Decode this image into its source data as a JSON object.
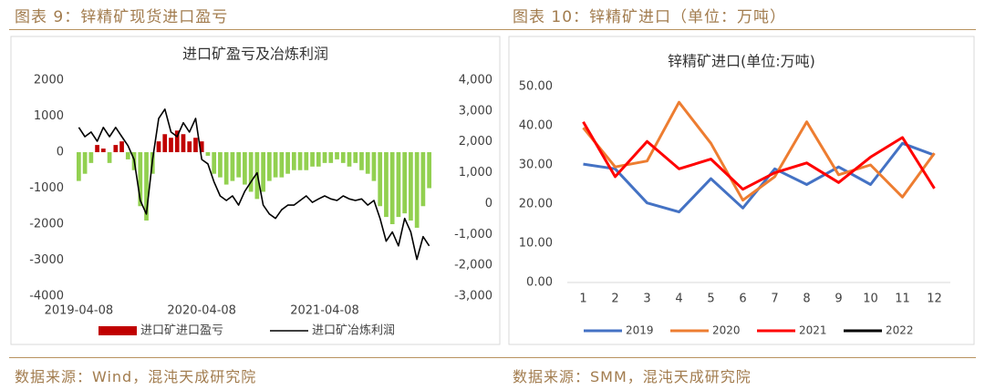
{
  "captions": [
    "图表 9：锌精矿现货进口盈亏",
    "图表 10：锌精矿进口（单位：万吨）"
  ],
  "sources": [
    "数据来源：Wind，混沌天成研究院",
    "数据来源：SMM，混沌天成研究院"
  ],
  "chart_data": [
    {
      "type": "combo",
      "title": "进口矿盈亏及冶炼利润",
      "categories": [
        "2019-04-08",
        null,
        null,
        null,
        null,
        null,
        null,
        null,
        null,
        null,
        null,
        null,
        null,
        null,
        null,
        null,
        null,
        null,
        null,
        null,
        "2020-04-08",
        null,
        null,
        null,
        null,
        null,
        null,
        null,
        null,
        null,
        null,
        null,
        null,
        null,
        null,
        null,
        null,
        null,
        null,
        null,
        "2021-04-08",
        null,
        null,
        null,
        null,
        null,
        null,
        null,
        null,
        null,
        null,
        null,
        null,
        null,
        null,
        null,
        null,
        null
      ],
      "ylim": [
        -4000,
        2000
      ],
      "yticks": [
        -4000,
        -3000,
        -2000,
        -1000,
        0,
        1000,
        2000
      ],
      "y2lim": [
        -3000,
        4000
      ],
      "y2ticks": [
        {
          "value": -3000,
          "label": "-3,000"
        },
        {
          "value": -2000,
          "label": "-2,000"
        },
        {
          "value": -1000,
          "label": "-1,000"
        },
        0,
        {
          "value": 1000,
          "label": "1,000"
        },
        {
          "value": 2000,
          "label": "2,000"
        },
        {
          "value": 3000,
          "label": "3,000"
        },
        {
          "value": 4000,
          "label": "4,000"
        }
      ],
      "grid": false,
      "series": [
        {
          "name": "进口矿进口盈亏",
          "type": "bar",
          "color": "#c00000",
          "negative_color": "#92d050",
          "values": [
            -800,
            -600,
            -300,
            200,
            100,
            -300,
            200,
            300,
            -200,
            -500,
            -1500,
            -1900,
            -600,
            300,
            500,
            400,
            600,
            500,
            300,
            400,
            300,
            -100,
            -600,
            -700,
            -900,
            -800,
            -700,
            -900,
            -1100,
            -1300,
            -1100,
            -800,
            -700,
            -700,
            -600,
            -500,
            -500,
            -500,
            -400,
            -400,
            -300,
            -300,
            -200,
            -300,
            -400,
            -300,
            -500,
            -600,
            -800,
            -1500,
            -1800,
            -2000,
            -1800,
            -1700,
            -1900,
            -2100,
            -1500,
            -1000
          ]
        },
        {
          "name": "进口矿冶炼利润",
          "type": "line",
          "axis": "y2",
          "color": "#000000",
          "values": [
            2470,
            2170,
            2320,
            2020,
            2470,
            2170,
            2470,
            2170,
            1880,
            1430,
            100,
            -340,
            1430,
            2760,
            3060,
            2320,
            2170,
            2620,
            2320,
            2760,
            1430,
            1290,
            700,
            250,
            100,
            250,
            -50,
            400,
            700,
            1000,
            -50,
            -340,
            -480,
            -200,
            -50,
            -50,
            100,
            250,
            40,
            150,
            250,
            150,
            100,
            250,
            150,
            100,
            150,
            -50,
            100,
            -480,
            -1220,
            -920,
            -1370,
            -480,
            -920,
            -1810,
            -1070,
            -1370
          ]
        }
      ]
    },
    {
      "type": "line",
      "title": "锌精矿进口(单位:万吨)",
      "categories": [
        "1",
        "2",
        "3",
        "4",
        "5",
        "6",
        "7",
        "8",
        "9",
        "10",
        "11",
        "12"
      ],
      "ylim": [
        0,
        50
      ],
      "yticks": [
        {
          "value": 0,
          "label": "0.00"
        },
        {
          "value": 10,
          "label": "10.00"
        },
        {
          "value": 20,
          "label": "20.00"
        },
        {
          "value": 30,
          "label": "30.00"
        },
        {
          "value": 40,
          "label": "40.00"
        },
        {
          "value": 50,
          "label": "50.00"
        }
      ],
      "grid": false,
      "series": [
        {
          "name": "2019",
          "color": "#4472c4",
          "values": [
            30.2,
            29,
            20.3,
            18,
            26.5,
            19,
            29,
            25,
            29.5,
            25,
            35.5,
            32.5
          ]
        },
        {
          "name": "2020",
          "color": "#ed7d31",
          "values": [
            39.5,
            29.5,
            31,
            46,
            35.5,
            21,
            27,
            41,
            27.5,
            30,
            21.8,
            33
          ]
        },
        {
          "name": "2021",
          "color": "#ff0000",
          "values": [
            41,
            27,
            36,
            29,
            31.5,
            23.8,
            28,
            30.5,
            25.5,
            32,
            37,
            24
          ]
        },
        {
          "name": "2022",
          "color": "#000000",
          "values": [
            null,
            null,
            null,
            null,
            null,
            null,
            null,
            null,
            null,
            null,
            null,
            null
          ]
        }
      ]
    }
  ]
}
